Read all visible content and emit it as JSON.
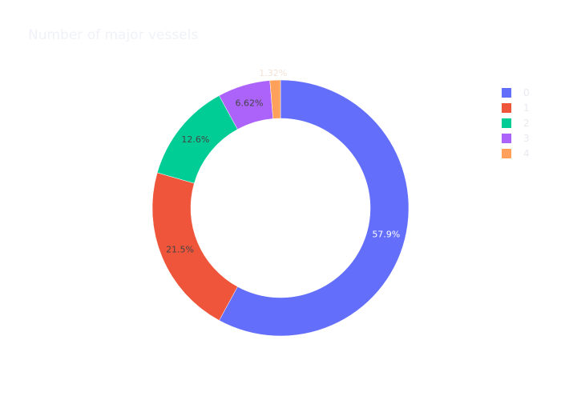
{
  "chart_data": {
    "type": "pie",
    "hole": 0.7,
    "title": "Number of major vessels",
    "categories": [
      "0",
      "1",
      "2",
      "3",
      "4"
    ],
    "values": [
      57.9,
      21.5,
      12.6,
      6.62,
      1.32
    ],
    "labels": [
      "57.9%",
      "21.5%",
      "12.6%",
      "6.62%",
      "1.32%"
    ],
    "colors": [
      "#636efa",
      "#ef553b",
      "#00cc96",
      "#ab63fa",
      "#ffa15a"
    ],
    "legend_placement": "top-right"
  }
}
